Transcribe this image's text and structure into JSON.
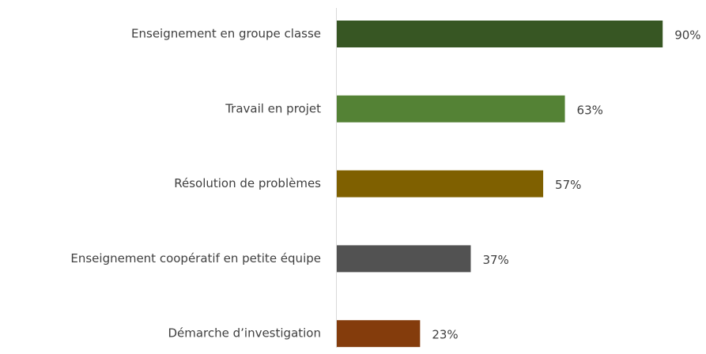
{
  "chart_data": {
    "type": "bar",
    "orientation": "horizontal",
    "categories": [
      "Enseignement en groupe classe",
      "Travail en projet",
      "Résolution de problèmes",
      "Enseignement coopératif en petite équipe",
      "Démarche d’investigation"
    ],
    "values": [
      90,
      63,
      57,
      37,
      23
    ],
    "value_labels": [
      "90%",
      "63%",
      "57%",
      "37%",
      "23%"
    ],
    "colors": [
      "#375623",
      "#548235",
      "#7f6000",
      "#525252",
      "#843c0c"
    ]
  }
}
